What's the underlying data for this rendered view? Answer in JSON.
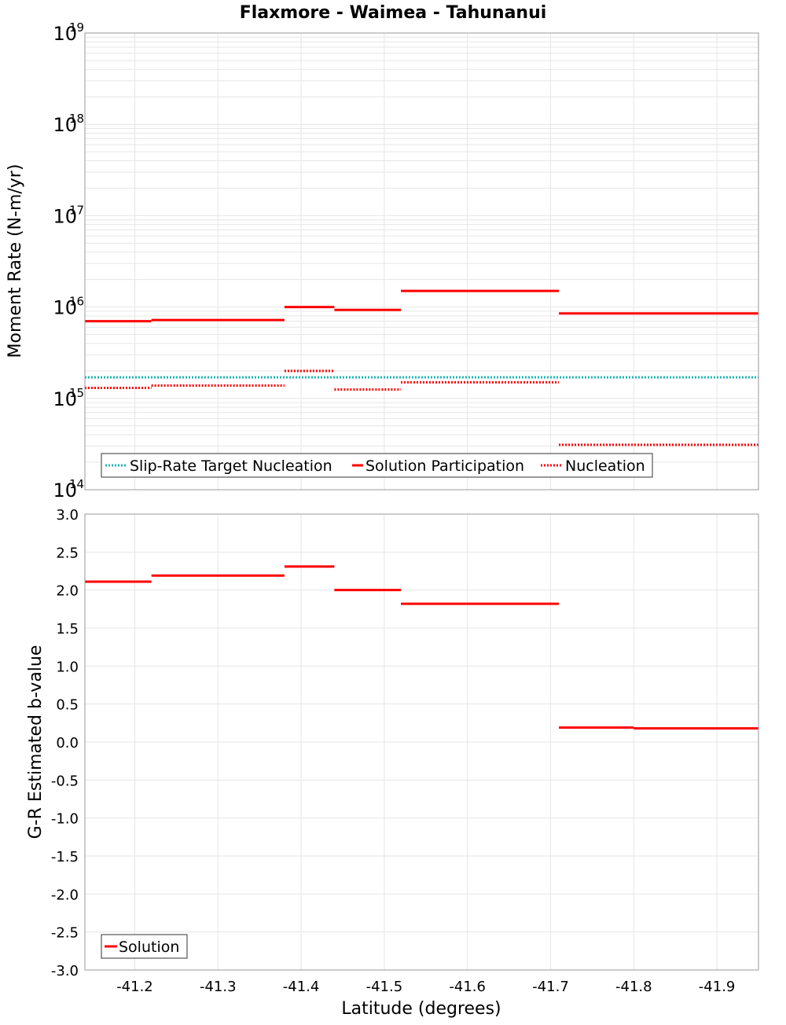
{
  "title": "Flaxmore - Waimea - Tahunanui",
  "colors": {
    "target": "#1fb5b5",
    "solution": "#ff0000",
    "grid": "#e6e6e6",
    "frame": "#9a9a9a"
  },
  "chart_data": [
    {
      "type": "line",
      "name": "moment-rate",
      "ylabel": "Moment Rate (N-m/yr)",
      "yscale": "log",
      "ylim": [
        100000000000000.0,
        1e+19
      ],
      "ytick_base": "10",
      "ytick_exponents": [
        "14",
        "15",
        "16",
        "17",
        "18",
        "19"
      ],
      "xlim": [
        -41.14,
        -41.95
      ],
      "grid": true,
      "legend_position": "bottom-left",
      "series": [
        {
          "name": "Slip-Rate Target Nucleation",
          "style": "dotted",
          "color": "#1fb5b5",
          "segments": [
            {
              "x0": -41.14,
              "x1": -41.95,
              "y": 1700000000000000.0
            }
          ]
        },
        {
          "name": "Solution Participation",
          "style": "solid",
          "color": "#ff0000",
          "segments": [
            {
              "x0": -41.14,
              "x1": -41.22,
              "y": 7000000000000000.0
            },
            {
              "x0": -41.22,
              "x1": -41.38,
              "y": 7200000000000000.0
            },
            {
              "x0": -41.38,
              "x1": -41.44,
              "y": 1e+16
            },
            {
              "x0": -41.44,
              "x1": -41.52,
              "y": 9300000000000000.0
            },
            {
              "x0": -41.52,
              "x1": -41.71,
              "y": 1.5e+16
            },
            {
              "x0": -41.71,
              "x1": -41.95,
              "y": 8500000000000000.0
            }
          ]
        },
        {
          "name": "Nucleation",
          "style": "dotted",
          "color": "#ff0000",
          "segments": [
            {
              "x0": -41.14,
              "x1": -41.22,
              "y": 1300000000000000.0
            },
            {
              "x0": -41.22,
              "x1": -41.38,
              "y": 1380000000000000.0
            },
            {
              "x0": -41.38,
              "x1": -41.44,
              "y": 2000000000000000.0
            },
            {
              "x0": -41.44,
              "x1": -41.52,
              "y": 1250000000000000.0
            },
            {
              "x0": -41.52,
              "x1": -41.71,
              "y": 1500000000000000.0
            },
            {
              "x0": -41.71,
              "x1": -41.95,
              "y": 310000000000000.0
            }
          ]
        }
      ]
    },
    {
      "type": "line",
      "name": "b-value",
      "ylabel": "G-R Estimated b-value",
      "xlabel": "Latitude (degrees)",
      "ylim": [
        -3.0,
        3.0
      ],
      "yticks": [
        3.0,
        2.5,
        2.0,
        1.5,
        1.0,
        0.5,
        0.0,
        -0.5,
        -1.0,
        -1.5,
        -2.0,
        -2.5,
        -3.0
      ],
      "ytick_labels": [
        "3.0",
        "2.5",
        "2.0",
        "1.5",
        "1.0",
        "0.5",
        "0.0",
        "-0.5",
        "-1.0",
        "-1.5",
        "-2.0",
        "-2.5",
        "-3.0"
      ],
      "xlim": [
        -41.14,
        -41.95
      ],
      "xticks": [
        -41.2,
        -41.3,
        -41.4,
        -41.5,
        -41.6,
        -41.7,
        -41.8,
        -41.9
      ],
      "xtick_labels": [
        "-41.2",
        "-41.3",
        "-41.4",
        "-41.5",
        "-41.6",
        "-41.7",
        "-41.8",
        "-41.9"
      ],
      "grid": true,
      "legend_position": "bottom-left",
      "series": [
        {
          "name": "Solution",
          "style": "solid",
          "color": "#ff0000",
          "segments": [
            {
              "x0": -41.14,
              "x1": -41.22,
              "y": 2.11
            },
            {
              "x0": -41.22,
              "x1": -41.38,
              "y": 2.19
            },
            {
              "x0": -41.38,
              "x1": -41.44,
              "y": 2.31
            },
            {
              "x0": -41.44,
              "x1": -41.52,
              "y": 2.0
            },
            {
              "x0": -41.52,
              "x1": -41.71,
              "y": 1.82
            },
            {
              "x0": -41.71,
              "x1": -41.8,
              "y": 0.19
            },
            {
              "x0": -41.8,
              "x1": -41.95,
              "y": 0.18
            }
          ]
        }
      ]
    }
  ]
}
